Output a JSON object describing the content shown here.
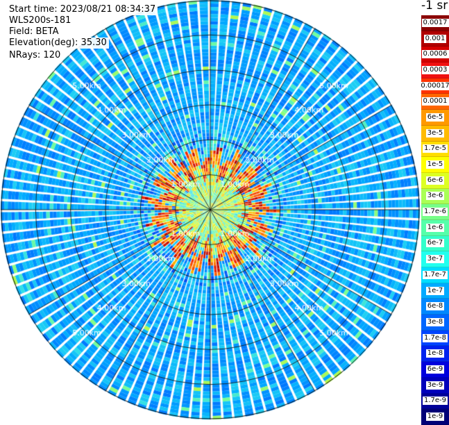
{
  "header": {
    "start_time": "Start time: 2023/08/21 08:34:37",
    "instrument": "WLS200s-181",
    "field": "Field: BETA",
    "elevation": "Elevation(deg): 35.30",
    "nrays": "NRays: 120"
  },
  "colorbar": {
    "unit_label": "-1 sr",
    "levels": [
      "0.0017",
      "0.001",
      "0.0006",
      "0.0003",
      "0.00017",
      "0.0001",
      "6e-5",
      "3e-5",
      "1.7e-5",
      "1e-5",
      "6e-6",
      "3e-6",
      "1.7e-6",
      "1e-6",
      "6e-7",
      "3e-7",
      "1.7e-7",
      "1e-7",
      "6e-8",
      "3e-8",
      "1.7e-8",
      "1e-8",
      "6e-9",
      "3e-9",
      "1.7e-9",
      "1e-9"
    ],
    "colors": [
      "#8b0000",
      "#b00000",
      "#d40000",
      "#f01010",
      "#ff3300",
      "#ff6600",
      "#ff9900",
      "#ffbb00",
      "#ffdd00",
      "#ffff00",
      "#ddff22",
      "#aaff55",
      "#77ff88",
      "#55ffaa",
      "#33ffcc",
      "#22ffee",
      "#00ddff",
      "#00aaff",
      "#0088ff",
      "#0066ff",
      "#0044ff",
      "#0022ee",
      "#0000dd",
      "#0000bb",
      "#000099",
      "#000077"
    ]
  },
  "chart_data": {
    "type": "heatmap",
    "projection": "polar PPI",
    "range_unit": "km",
    "range_rings": [
      "1.00km",
      "2.00km",
      "3.00km",
      "4.00km",
      "5.00km"
    ],
    "ring_values_km": [
      1,
      2,
      3,
      4,
      5
    ],
    "max_range_km": 6.0,
    "azimuth_lines_deg": [
      0,
      30,
      60,
      90,
      120,
      150,
      180,
      210,
      240,
      270,
      300,
      330
    ],
    "nrays": 120,
    "range_gates": 60,
    "colorscale": "log10, 1e-9 to 0.0017 sr-1",
    "field": "BETA"
  }
}
